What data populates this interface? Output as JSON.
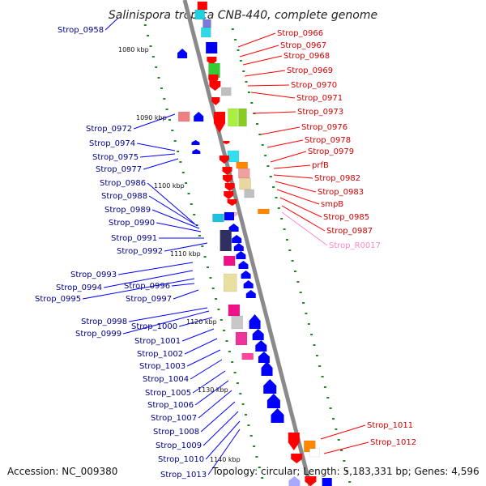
{
  "title": "Salinispora tropica CNB-440, complete genome",
  "footer": {
    "accession": "Accession: NC_009380",
    "topology": "Topology: circular; Length: 5,183,331 bp; Genes: 4,596"
  },
  "colors": {
    "backbone": "#8a8a8a",
    "forward": "#ff0000",
    "reverse": "#0000ff",
    "rna": "#ff88cc",
    "tick": "#1f8a1f",
    "label_forward": "#d40000",
    "label_reverse": "#00008b"
  },
  "kbp_ticks": [
    "1080 kbp",
    "1090 kbp",
    "1100 kbp",
    "1110 kbp",
    "1120 kbp",
    "1130 kbp",
    "1140 kbp"
  ],
  "labels_left": [
    "Strop_0958",
    "Strop_0972",
    "Strop_0974",
    "Strop_0975",
    "Strop_0977",
    "Strop_0986",
    "Strop_0988",
    "Strop_0989",
    "Strop_0990",
    "Strop_0991",
    "Strop_0992",
    "Strop_0993",
    "Strop_0994",
    "Strop_0995",
    "Strop_0996",
    "Strop_0997",
    "Strop_0998",
    "Strop_0999",
    "Strop_1000",
    "Strop_1001",
    "Strop_1002",
    "Strop_1003",
    "Strop_1004",
    "Strop_1005",
    "Strop_1006",
    "Strop_1007",
    "Strop_1008",
    "Strop_1009",
    "Strop_1010",
    "Strop_1013"
  ],
  "labels_right": [
    "Strop_0966",
    "Strop_0967",
    "Strop_0968",
    "Strop_0969",
    "Strop_0970",
    "Strop_0971",
    "Strop_0973",
    "Strop_0976",
    "Strop_0978",
    "Strop_0979",
    "prfB",
    "Strop_0982",
    "Strop_0983",
    "smpB",
    "Strop_0985",
    "Strop_0987",
    "Strop_R0017",
    "Strop_1011",
    "Strop_1012"
  ]
}
